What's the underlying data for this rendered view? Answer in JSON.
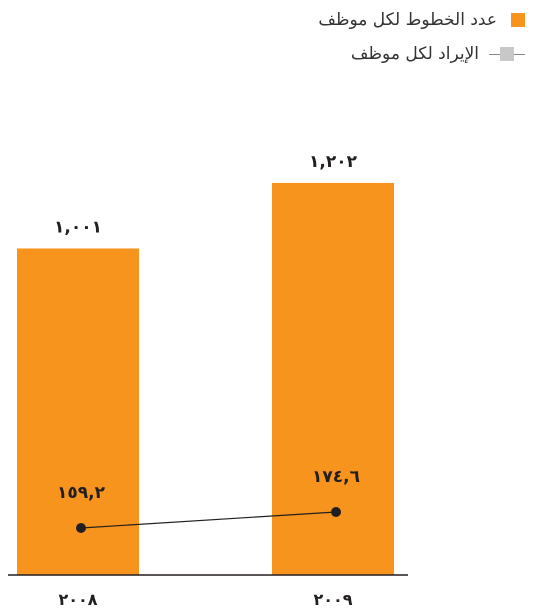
{
  "chart_data": {
    "type": "bar",
    "categories": [
      "2008",
      "2009"
    ],
    "category_labels": [
      "٢٠٠٨",
      "٢٠٠٩"
    ],
    "series": [
      {
        "name": "عدد الخطوط لكل موظف",
        "kind": "bar",
        "color": "#f7941d",
        "values": [
          1001,
          1202
        ],
        "value_labels": [
          "١,٠٠١",
          "١,٢٠٢"
        ]
      },
      {
        "name": "الإيراد لكل موظف",
        "kind": "line",
        "color": "#231f20",
        "values": [
          159.2,
          174.6
        ],
        "value_labels": [
          "١٥٩,٢",
          "١٧٤,٦"
        ]
      }
    ],
    "legend_position": "top-right",
    "grid": false
  }
}
